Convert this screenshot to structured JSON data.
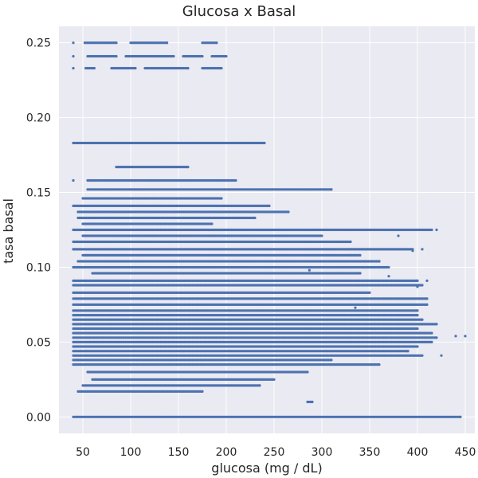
{
  "chart_data": {
    "type": "scatter",
    "title": "Glucosa x Basal",
    "xlabel": "glucosa (mg / dL)",
    "ylabel": "tasa basal",
    "xlim": [
      25,
      460
    ],
    "ylim": [
      -0.011,
      0.261
    ],
    "xticks": [
      50,
      100,
      150,
      200,
      250,
      300,
      350,
      400,
      450
    ],
    "yticks": [
      0.0,
      0.05,
      0.1,
      0.15,
      0.2,
      0.25
    ],
    "xtick_labels": [
      "50",
      "100",
      "150",
      "200",
      "250",
      "300",
      "350",
      "400",
      "450"
    ],
    "ytick_labels": [
      "0.00",
      "0.05",
      "0.10",
      "0.15",
      "0.20",
      "0.25"
    ],
    "grid": true,
    "legend": "none",
    "style": {
      "background": "#EAEAF2",
      "grid_color": "#ffffff",
      "marker_color": "#4C72B0"
    },
    "bands": [
      {
        "y": 0.25,
        "segments": [
          [
            40,
            40
          ],
          [
            52,
            85
          ],
          [
            100,
            138
          ],
          [
            175,
            190
          ]
        ]
      },
      {
        "y": 0.241,
        "segments": [
          [
            40,
            40
          ],
          [
            55,
            85
          ],
          [
            95,
            145
          ],
          [
            155,
            175
          ],
          [
            185,
            200
          ]
        ]
      },
      {
        "y": 0.233,
        "segments": [
          [
            40,
            40
          ],
          [
            53,
            62
          ],
          [
            80,
            105
          ],
          [
            115,
            160
          ],
          [
            175,
            195
          ]
        ]
      },
      {
        "y": 0.183,
        "segments": [
          [
            40,
            240
          ]
        ]
      },
      {
        "y": 0.167,
        "segments": [
          [
            85,
            160
          ]
        ]
      },
      {
        "y": 0.158,
        "segments": [
          [
            40,
            40
          ],
          [
            55,
            210
          ]
        ]
      },
      {
        "y": 0.152,
        "segments": [
          [
            55,
            310
          ]
        ]
      },
      {
        "y": 0.146,
        "segments": [
          [
            50,
            195
          ]
        ]
      },
      {
        "y": 0.141,
        "segments": [
          [
            40,
            245
          ]
        ]
      },
      {
        "y": 0.137,
        "segments": [
          [
            45,
            265
          ]
        ]
      },
      {
        "y": 0.133,
        "segments": [
          [
            45,
            230
          ]
        ]
      },
      {
        "y": 0.129,
        "segments": [
          [
            50,
            185
          ]
        ]
      },
      {
        "y": 0.125,
        "segments": [
          [
            40,
            415
          ]
        ]
      },
      {
        "y": 0.121,
        "segments": [
          [
            50,
            300
          ]
        ]
      },
      {
        "y": 0.117,
        "segments": [
          [
            40,
            330
          ]
        ]
      },
      {
        "y": 0.112,
        "segments": [
          [
            40,
            395
          ]
        ]
      },
      {
        "y": 0.108,
        "segments": [
          [
            50,
            340
          ]
        ]
      },
      {
        "y": 0.104,
        "segments": [
          [
            45,
            360
          ]
        ]
      },
      {
        "y": 0.1,
        "segments": [
          [
            40,
            370
          ]
        ]
      },
      {
        "y": 0.096,
        "segments": [
          [
            60,
            340
          ]
        ]
      },
      {
        "y": 0.091,
        "segments": [
          [
            40,
            400
          ]
        ]
      },
      {
        "y": 0.088,
        "segments": [
          [
            40,
            405
          ]
        ]
      },
      {
        "y": 0.083,
        "segments": [
          [
            40,
            350
          ]
        ]
      },
      {
        "y": 0.079,
        "segments": [
          [
            40,
            410
          ]
        ]
      },
      {
        "y": 0.075,
        "segments": [
          [
            40,
            410
          ]
        ]
      },
      {
        "y": 0.071,
        "segments": [
          [
            40,
            400
          ]
        ]
      },
      {
        "y": 0.068,
        "segments": [
          [
            40,
            400
          ]
        ]
      },
      {
        "y": 0.065,
        "segments": [
          [
            40,
            405
          ]
        ]
      },
      {
        "y": 0.062,
        "segments": [
          [
            40,
            420
          ]
        ]
      },
      {
        "y": 0.059,
        "segments": [
          [
            40,
            400
          ]
        ]
      },
      {
        "y": 0.056,
        "segments": [
          [
            40,
            415
          ]
        ]
      },
      {
        "y": 0.053,
        "segments": [
          [
            40,
            420
          ]
        ]
      },
      {
        "y": 0.05,
        "segments": [
          [
            40,
            415
          ]
        ]
      },
      {
        "y": 0.047,
        "segments": [
          [
            40,
            400
          ]
        ]
      },
      {
        "y": 0.044,
        "segments": [
          [
            40,
            390
          ]
        ]
      },
      {
        "y": 0.041,
        "segments": [
          [
            40,
            405
          ]
        ]
      },
      {
        "y": 0.038,
        "segments": [
          [
            40,
            310
          ]
        ]
      },
      {
        "y": 0.035,
        "segments": [
          [
            40,
            360
          ]
        ]
      },
      {
        "y": 0.03,
        "segments": [
          [
            55,
            285
          ]
        ]
      },
      {
        "y": 0.025,
        "segments": [
          [
            60,
            250
          ]
        ]
      },
      {
        "y": 0.021,
        "segments": [
          [
            50,
            235
          ]
        ]
      },
      {
        "y": 0.017,
        "segments": [
          [
            45,
            175
          ]
        ]
      },
      {
        "y": 0.01,
        "segments": [
          [
            285,
            290
          ]
        ]
      },
      {
        "y": 0.0,
        "segments": [
          [
            40,
            445
          ]
        ]
      }
    ],
    "sparse_points": [
      [
        440,
        0.054
      ],
      [
        450,
        0.054
      ],
      [
        425,
        0.041
      ],
      [
        400,
        0.087
      ],
      [
        410,
        0.091
      ],
      [
        395,
        0.111
      ],
      [
        405,
        0.112
      ],
      [
        420,
        0.125
      ],
      [
        380,
        0.121
      ],
      [
        370,
        0.094
      ],
      [
        360,
        0.1
      ],
      [
        345,
        0.104
      ],
      [
        335,
        0.073
      ],
      [
        330,
        0.108
      ],
      [
        287,
        0.098
      ]
    ]
  }
}
